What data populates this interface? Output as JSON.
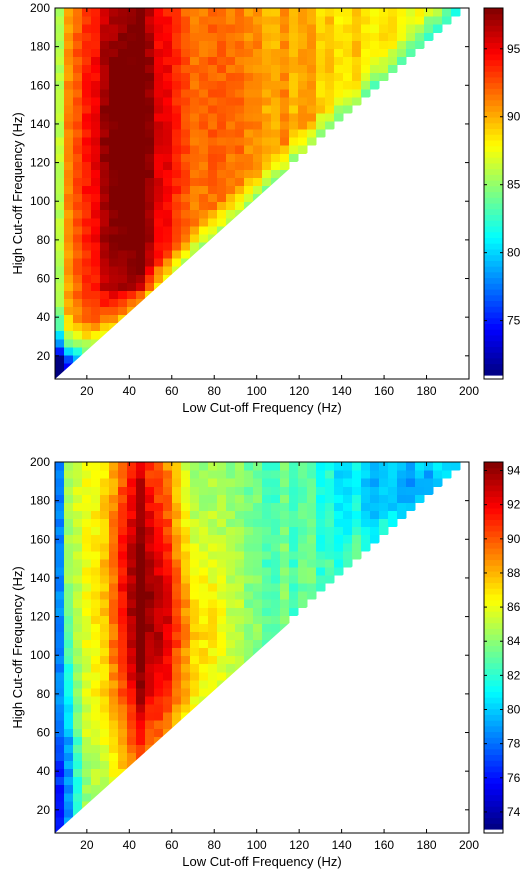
{
  "chart_data": [
    {
      "type": "heatmap",
      "xlabel": "Low Cut-off Frequency (Hz)",
      "ylabel": "High Cut-off Frequency (Hz)",
      "xlim": [
        5,
        200
      ],
      "ylim": [
        8,
        200
      ],
      "x_ticks": [
        20,
        40,
        60,
        80,
        100,
        120,
        140,
        160,
        180,
        200
      ],
      "y_ticks": [
        20,
        40,
        60,
        80,
        100,
        120,
        140,
        160,
        180,
        200
      ],
      "colorbar": {
        "range": [
          71,
          98
        ],
        "ticks": [
          75,
          80,
          85,
          90,
          95
        ],
        "colormap": "jet"
      },
      "grid": false,
      "region": "upper-left triangle (high > low)",
      "value_description": {
        "max_value": 98,
        "min_value": 72,
        "peak_region": {
          "low_hz": [
            25,
            50
          ],
          "high_hz": [
            55,
            200
          ],
          "value": 97
        },
        "low_region": {
          "low_hz": [
            5,
            15
          ],
          "high_hz": [
            8,
            25
          ],
          "value": 74
        }
      }
    },
    {
      "type": "heatmap",
      "xlabel": "Low Cut-off Frequency (Hz)",
      "ylabel": "High Cut-off Frequency (Hz)",
      "xlim": [
        5,
        200
      ],
      "ylim": [
        8,
        200
      ],
      "x_ticks": [
        20,
        40,
        60,
        80,
        100,
        120,
        140,
        160,
        180,
        200
      ],
      "y_ticks": [
        20,
        40,
        60,
        80,
        100,
        120,
        140,
        160,
        180,
        200
      ],
      "colorbar": {
        "range": [
          73,
          94.5
        ],
        "ticks": [
          74,
          76,
          78,
          80,
          82,
          84,
          86,
          88,
          90,
          92,
          94
        ],
        "colormap": "jet"
      },
      "grid": false,
      "region": "upper-left triangle (high > low)",
      "value_description": {
        "max_value": 94,
        "min_value": 74,
        "peak_region": {
          "low_hz": [
            38,
            52
          ],
          "high_hz": [
            80,
            200
          ],
          "value": 93
        },
        "low_region": {
          "low_hz": [
            5,
            12
          ],
          "high_hz": [
            10,
            60
          ],
          "value": 76
        },
        "secondary_low_region": {
          "low_hz": [
            150,
            180
          ],
          "high_hz": [
            170,
            200
          ],
          "value": 77
        }
      }
    }
  ]
}
